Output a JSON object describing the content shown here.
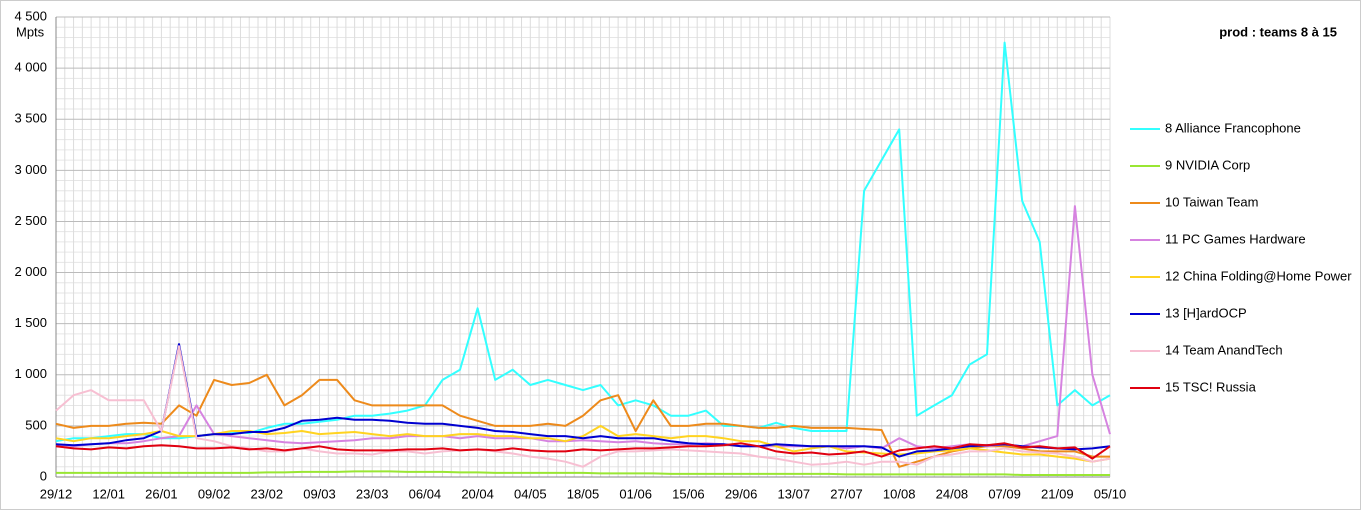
{
  "chart_data": {
    "type": "line",
    "title": "prod : teams 8 à 15",
    "y_label": "Mpts",
    "categories": [
      "29/12",
      null,
      null,
      "12/01",
      null,
      null,
      "26/01",
      null,
      null,
      "09/02",
      null,
      null,
      "23/02",
      null,
      null,
      "09/03",
      null,
      null,
      "23/03",
      null,
      null,
      "06/04",
      null,
      null,
      "20/04",
      null,
      null,
      "04/05",
      null,
      null,
      "18/05",
      null,
      null,
      "01/06",
      null,
      null,
      "15/06",
      null,
      null,
      "29/06",
      null,
      null,
      "13/07",
      null,
      null,
      "27/07",
      null,
      null,
      "10/08",
      null,
      null,
      "24/08",
      null,
      null,
      "07/09",
      null,
      null,
      "21/09",
      null,
      null,
      "05/10"
    ],
    "ylim": [
      0,
      4500
    ],
    "yticks": [
      0,
      500,
      {
        "value": 1000,
        "label": "1 000"
      },
      {
        "value": 1500,
        "label": "1 500"
      },
      {
        "value": 2000,
        "label": "2 000"
      },
      {
        "value": 2500,
        "label": "2 500"
      },
      {
        "value": 3000,
        "label": "3 000"
      },
      {
        "value": 3500,
        "label": "3 500"
      },
      {
        "value": 4000,
        "label": "4 000"
      },
      {
        "value": 4500,
        "label": "4 500"
      }
    ],
    "grid": true,
    "series": [
      {
        "name": "8 Alliance Francophone",
        "color": "#33ffff",
        "values": [
          350,
          380,
          380,
          400,
          420,
          420,
          380,
          380,
          400,
          420,
          440,
          430,
          480,
          520,
          520,
          540,
          560,
          600,
          600,
          620,
          650,
          700,
          950,
          1050,
          1650,
          950,
          1050,
          900,
          950,
          900,
          850,
          900,
          700,
          750,
          700,
          600,
          600,
          650,
          500,
          500,
          480,
          530,
          480,
          450,
          450,
          450,
          2800,
          3100,
          3400,
          600,
          700,
          800,
          1100,
          1200,
          4250,
          2700,
          2300,
          700,
          850,
          700,
          800
        ]
      },
      {
        "name": "9 NVIDIA Corp",
        "color": "#99e633",
        "values": [
          40,
          40,
          40,
          40,
          40,
          40,
          40,
          40,
          40,
          40,
          40,
          40,
          45,
          45,
          50,
          50,
          50,
          55,
          55,
          55,
          50,
          50,
          50,
          45,
          45,
          40,
          40,
          40,
          40,
          40,
          40,
          35,
          35,
          35,
          35,
          30,
          30,
          30,
          30,
          30,
          30,
          30,
          30,
          30,
          30,
          25,
          25,
          25,
          25,
          25,
          25,
          25,
          25,
          25,
          25,
          20,
          20,
          20,
          20,
          20,
          20
        ]
      },
      {
        "name": "10 Taiwan Team",
        "color": "#ed8a1b",
        "values": [
          520,
          480,
          500,
          500,
          520,
          530,
          520,
          700,
          600,
          950,
          900,
          920,
          1000,
          700,
          800,
          950,
          950,
          750,
          700,
          700,
          700,
          700,
          700,
          600,
          550,
          500,
          500,
          500,
          520,
          500,
          600,
          750,
          800,
          450,
          750,
          500,
          500,
          520,
          520,
          500,
          480,
          480,
          500,
          480,
          480,
          480,
          470,
          460,
          100,
          150,
          200,
          250,
          280,
          300,
          300,
          280,
          250,
          250,
          250,
          200,
          200
        ]
      },
      {
        "name": "11 PC Games Hardware",
        "color": "#d683e0",
        "values": [
          320,
          300,
          320,
          330,
          330,
          350,
          380,
          400,
          700,
          420,
          400,
          380,
          360,
          340,
          330,
          340,
          350,
          360,
          380,
          380,
          400,
          400,
          400,
          380,
          400,
          380,
          380,
          380,
          350,
          350,
          360,
          350,
          340,
          350,
          330,
          320,
          320,
          330,
          320,
          300,
          300,
          300,
          300,
          300,
          300,
          280,
          300,
          280,
          380,
          300,
          280,
          300,
          320,
          300,
          320,
          300,
          350,
          400,
          2650,
          1000,
          420
        ]
      },
      {
        "name": "12 China Folding@Home Power",
        "color": "#ffd320",
        "values": [
          380,
          350,
          380,
          380,
          400,
          420,
          450,
          400,
          400,
          420,
          450,
          450,
          420,
          430,
          450,
          420,
          430,
          440,
          420,
          400,
          420,
          400,
          400,
          420,
          420,
          400,
          400,
          380,
          380,
          350,
          400,
          500,
          400,
          420,
          400,
          380,
          400,
          400,
          380,
          350,
          350,
          300,
          250,
          280,
          300,
          250,
          240,
          230,
          220,
          230,
          250,
          260,
          280,
          260,
          240,
          220,
          220,
          200,
          180,
          150,
          180
        ]
      },
      {
        "name": "13 [H]ardOCP",
        "color": "#0000d0",
        "values": [
          320,
          310,
          320,
          330,
          360,
          380,
          450,
          1300,
          400,
          420,
          420,
          440,
          440,
          480,
          550,
          560,
          580,
          560,
          560,
          550,
          530,
          520,
          520,
          500,
          480,
          450,
          440,
          420,
          400,
          400,
          380,
          400,
          380,
          380,
          380,
          350,
          330,
          320,
          320,
          300,
          300,
          320,
          310,
          300,
          300,
          300,
          300,
          290,
          200,
          250,
          260,
          280,
          300,
          310,
          320,
          300,
          290,
          280,
          270,
          280,
          300
        ]
      },
      {
        "name": "14 Team AnandTech",
        "color": "#f7bfd2",
        "values": [
          650,
          800,
          850,
          750,
          750,
          750,
          450,
          1280,
          380,
          350,
          300,
          280,
          250,
          250,
          280,
          250,
          230,
          230,
          220,
          250,
          250,
          230,
          250,
          260,
          270,
          250,
          230,
          200,
          180,
          150,
          100,
          200,
          250,
          250,
          260,
          270,
          260,
          250,
          240,
          230,
          200,
          180,
          150,
          120,
          130,
          150,
          120,
          150,
          150,
          120,
          200,
          220,
          250,
          250,
          280,
          250,
          240,
          230,
          200,
          150,
          180
        ]
      },
      {
        "name": "15 TSC! Russia",
        "color": "#e00010",
        "values": [
          300,
          280,
          270,
          290,
          280,
          300,
          310,
          300,
          280,
          280,
          290,
          270,
          280,
          260,
          280,
          300,
          270,
          260,
          260,
          260,
          270,
          270,
          280,
          260,
          270,
          260,
          280,
          260,
          250,
          250,
          270,
          260,
          270,
          280,
          280,
          290,
          300,
          300,
          310,
          330,
          300,
          250,
          230,
          240,
          220,
          230,
          250,
          200,
          260,
          280,
          300,
          280,
          320,
          310,
          330,
          290,
          300,
          280,
          290,
          180,
          300
        ]
      }
    ]
  }
}
